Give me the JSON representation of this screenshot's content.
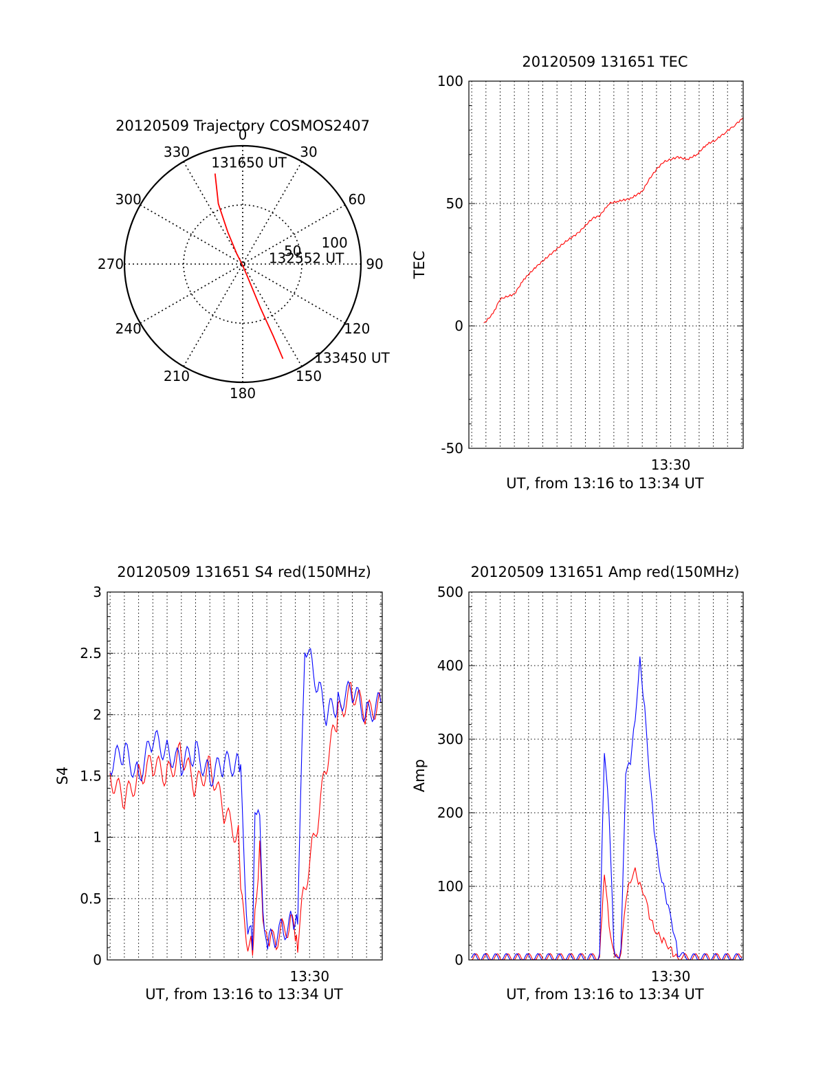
{
  "chart_data": [
    {
      "type": "polar-trajectory",
      "title": "20120509 Trajectory COSMOS2407",
      "angle_labels": [
        "0",
        "30",
        "60",
        "90",
        "120",
        "150",
        "180",
        "210",
        "240",
        "270",
        "300",
        "330"
      ],
      "radius_labels": [
        "50",
        "100"
      ],
      "grid": true,
      "trajectory": {
        "color": "#ff0000",
        "points": [
          {
            "azimuth": 343,
            "zenith_angle": 80
          },
          {
            "azimuth": 338,
            "zenith_angle": 55
          },
          {
            "azimuth": 335,
            "zenith_angle": 30
          },
          {
            "azimuth": 330,
            "zenith_angle": 10
          },
          {
            "azimuth": 300,
            "zenith_angle": 1
          },
          {
            "azimuth": 160,
            "zenith_angle": 8
          },
          {
            "azimuth": 158,
            "zenith_angle": 40
          },
          {
            "azimuth": 157,
            "zenith_angle": 66
          },
          {
            "azimuth": 157,
            "zenith_angle": 87
          }
        ]
      },
      "annotations": [
        {
          "text": "131650 UT",
          "azimuth": 342,
          "zenith_angle": 86
        },
        {
          "text": "132552 UT",
          "azimuth": 88,
          "zenith_angle": 22
        },
        {
          "text": "133450 UT",
          "azimuth": 144,
          "zenith_angle": 103
        }
      ]
    },
    {
      "type": "line",
      "title": "20120509 131651 TEC",
      "ylabel": "TEC",
      "xlabel": "UT, from 13:16 to 13:34 UT",
      "xlim": [
        "13:15:48",
        "13:35:06"
      ],
      "ylim": [
        -50,
        100
      ],
      "yticks": [
        -50,
        0,
        50,
        100
      ],
      "xtick_labels": [
        {
          "time": "13:30:00",
          "label": "13:30"
        }
      ],
      "grid": true,
      "series": [
        {
          "color": "#ff0000",
          "x": [
            "13:16:51",
            "13:17:30",
            "13:18:00",
            "13:18:30",
            "13:19:00",
            "13:19:40",
            "13:20:30",
            "13:21:30",
            "13:22:30",
            "13:23:30",
            "13:24:30",
            "13:25:00",
            "13:25:40",
            "13:26:20",
            "13:27:10",
            "13:28:00",
            "13:28:30",
            "13:29:00",
            "13:29:30",
            "13:30:00",
            "13:30:30",
            "13:31:10",
            "13:31:50",
            "13:32:30",
            "13:33:10",
            "13:33:50",
            "13:34:30",
            "13:35:06"
          ],
          "y": [
            1,
            5,
            11,
            12,
            13,
            19,
            24,
            29,
            34,
            38,
            44,
            45,
            50,
            51,
            52,
            55,
            60,
            64,
            67,
            68,
            69,
            68,
            70,
            74,
            76,
            79,
            82,
            85
          ]
        }
      ]
    },
    {
      "type": "line",
      "title": "20120509 131651 S4 red(150MHz)",
      "ylabel": "S4",
      "xlabel": "UT, from 13:16 to 13:34 UT",
      "xlim": [
        "13:15:48",
        "13:35:06"
      ],
      "ylim": [
        0,
        3
      ],
      "yticks": [
        "0",
        "0.5",
        "1",
        "1.5",
        "2",
        "2.5",
        "3"
      ],
      "xtick_labels": [
        {
          "time": "13:30:00",
          "label": "13:30"
        }
      ],
      "grid": true,
      "series": [
        {
          "color": "#ff0000",
          "x": [
            "13:16:00",
            "13:17:00",
            "13:18:00",
            "13:19:00",
            "13:20:00",
            "13:21:00",
            "13:22:00",
            "13:23:00",
            "13:24:00",
            "13:25:00",
            "13:25:10",
            "13:25:40",
            "13:26:00",
            "13:26:10",
            "13:26:30",
            "13:26:50",
            "13:27:10",
            "13:27:40",
            "13:28:10",
            "13:28:40",
            "13:29:00",
            "13:29:10",
            "13:29:40",
            "13:30:10",
            "13:30:40",
            "13:31:10",
            "13:32:00",
            "13:33:00",
            "13:34:00",
            "13:35:00"
          ],
          "y": [
            1.5,
            1.3,
            1.5,
            1.6,
            1.5,
            1.7,
            1.4,
            1.6,
            1.2,
            1.0,
            0.5,
            0.15,
            0.12,
            0.45,
            0.9,
            0.15,
            0.12,
            0.18,
            0.25,
            0.3,
            0.2,
            0.15,
            0.6,
            0.9,
            1.2,
            1.6,
            2.0,
            2.2,
            2.0,
            2.1
          ]
        },
        {
          "color": "#0000ff",
          "x": [
            "13:16:00",
            "13:17:00",
            "13:18:00",
            "13:19:00",
            "13:20:00",
            "13:21:00",
            "13:22:00",
            "13:23:00",
            "13:24:00",
            "13:25:00",
            "13:25:10",
            "13:25:40",
            "13:26:00",
            "13:26:10",
            "13:26:30",
            "13:26:50",
            "13:27:10",
            "13:27:40",
            "13:28:10",
            "13:28:40",
            "13:29:00",
            "13:29:10",
            "13:29:40",
            "13:30:10",
            "13:30:40",
            "13:31:10",
            "13:32:00",
            "13:33:00",
            "13:34:00",
            "13:35:00"
          ],
          "y": [
            1.6,
            1.7,
            1.5,
            1.8,
            1.7,
            1.6,
            1.7,
            1.5,
            1.6,
            1.6,
            1.5,
            0.2,
            0.17,
            1.3,
            1.2,
            0.15,
            0.14,
            0.2,
            0.25,
            0.3,
            0.25,
            0.3,
            2.6,
            2.4,
            2.2,
            2.0,
            2.1,
            2.2,
            2.0,
            2.1
          ]
        }
      ]
    },
    {
      "type": "line",
      "title": "20120509 131651 Amp red(150MHz)",
      "ylabel": "Amp",
      "xlabel": "UT, from 13:16 to 13:34 UT",
      "xlim": [
        "13:15:48",
        "13:35:06"
      ],
      "ylim": [
        0,
        500
      ],
      "yticks": [
        0,
        100,
        200,
        300,
        400,
        500
      ],
      "xtick_labels": [
        {
          "time": "13:30:00",
          "label": "13:30"
        }
      ],
      "grid": true,
      "series": [
        {
          "color": "#ff0000",
          "x": [
            "13:16:00",
            "13:25:00",
            "13:25:10",
            "13:25:20",
            "13:25:40",
            "13:26:00",
            "13:26:10",
            "13:26:30",
            "13:26:50",
            "13:27:10",
            "13:27:30",
            "13:27:50",
            "13:28:10",
            "13:28:30",
            "13:28:50",
            "13:29:10",
            "13:29:30",
            "13:29:50",
            "13:30:10",
            "13:30:30",
            "13:31:00",
            "13:35:00"
          ],
          "y": [
            3,
            3,
            60,
            120,
            50,
            10,
            3,
            5,
            80,
            110,
            125,
            100,
            85,
            60,
            45,
            35,
            25,
            15,
            10,
            5,
            3,
            3
          ]
        },
        {
          "color": "#0000ff",
          "x": [
            "13:16:00",
            "13:25:00",
            "13:25:10",
            "13:25:20",
            "13:25:40",
            "13:26:00",
            "13:26:10",
            "13:26:30",
            "13:26:50",
            "13:27:10",
            "13:27:30",
            "13:27:50",
            "13:28:10",
            "13:28:30",
            "13:28:50",
            "13:29:10",
            "13:29:30",
            "13:29:50",
            "13:30:10",
            "13:30:30",
            "13:31:00",
            "13:35:00"
          ],
          "y": [
            3,
            3,
            150,
            280,
            200,
            20,
            5,
            10,
            250,
            270,
            330,
            410,
            340,
            250,
            180,
            130,
            100,
            70,
            40,
            10,
            3,
            3
          ]
        }
      ]
    }
  ]
}
